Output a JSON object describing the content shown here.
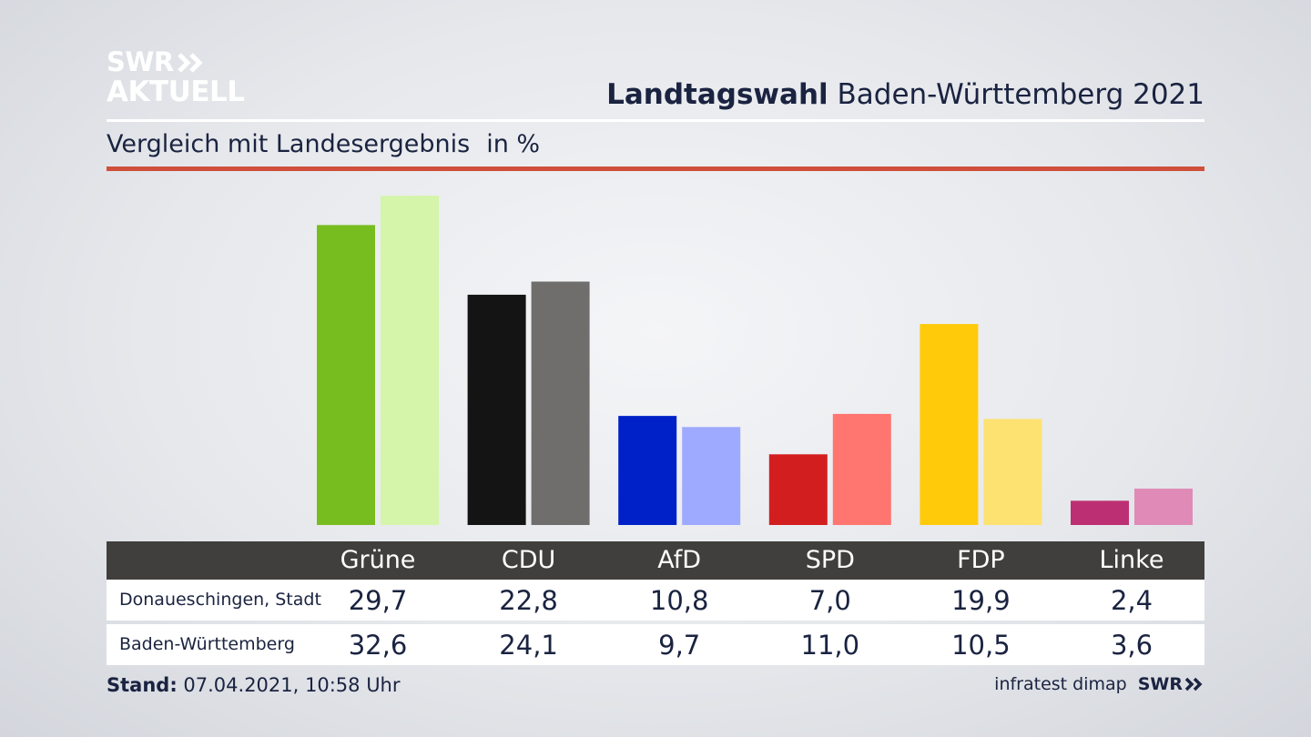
{
  "brand": {
    "line1": "SWR",
    "line2": "AKTUELL"
  },
  "header": {
    "title_bold": "Landtagswahl",
    "title_rest": "Baden-Württemberg 2021"
  },
  "subtitle": {
    "text": "Vergleich mit Landesergebnis",
    "unit": "in %"
  },
  "chart_data": {
    "type": "bar",
    "categories": [
      "Grüne",
      "CDU",
      "AfD",
      "SPD",
      "FDP",
      "Linke"
    ],
    "series": [
      {
        "name": "Donaueschingen, Stadt",
        "values": [
          29.7,
          22.8,
          10.8,
          7.0,
          19.9,
          2.4
        ]
      },
      {
        "name": "Baden-Württemberg",
        "values": [
          32.6,
          24.1,
          9.7,
          11.0,
          10.5,
          3.6
        ]
      }
    ],
    "value_labels": [
      [
        "29,7",
        "22,8",
        "10,8",
        "7,0",
        "19,9",
        "2,4"
      ],
      [
        "32,6",
        "24,1",
        "9,7",
        "11,0",
        "10,5",
        "3,6"
      ]
    ],
    "colors": {
      "Grüne": [
        "#78bd1f",
        "#d4f5aa"
      ],
      "CDU": [
        "#141414",
        "#6f6e6c"
      ],
      "AfD": [
        "#0021c8",
        "#9eaaff"
      ],
      "SPD": [
        "#d31e20",
        "#ff7670"
      ],
      "FDP": [
        "#ffca0a",
        "#fde272"
      ],
      "Linke": [
        "#bd2f73",
        "#e08ab7"
      ]
    },
    "grid": false,
    "legend": "table below chart"
  },
  "footer": {
    "stand_label": "Stand:",
    "stand_value": "07.04.2021, 10:58 Uhr",
    "source": "infratest dimap",
    "source_logo": "SWR"
  }
}
